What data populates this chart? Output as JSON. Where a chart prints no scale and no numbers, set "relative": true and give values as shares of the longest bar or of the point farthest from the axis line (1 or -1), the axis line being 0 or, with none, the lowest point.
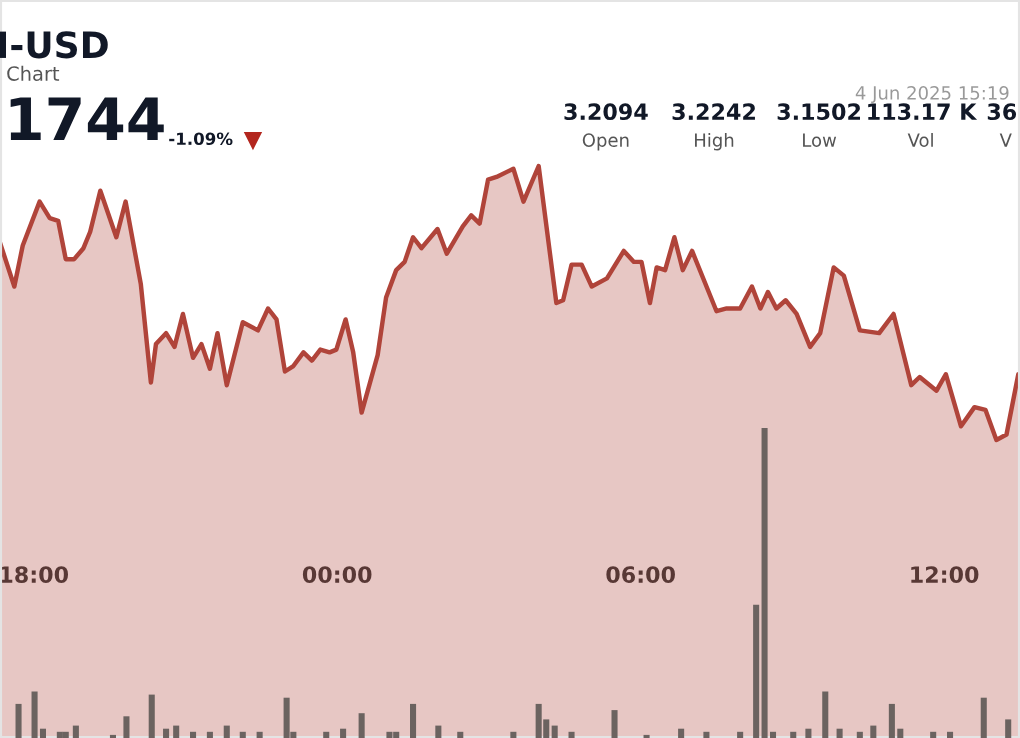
{
  "chart_data": [
    {
      "type": "area",
      "title": "I-USD",
      "subtitle": "Chart",
      "relative": true,
      "annotations": [
        "1744",
        "-1.09%",
        "4 Jun 2025 15:19",
        "3.2094",
        "Open",
        "3.2242",
        "High",
        "3.1502",
        "Low",
        "113.17 K",
        "Vol",
        "36",
        "V"
      ],
      "xlim": [
        "2025-06-03T17:20",
        "2025-06-04T13:30"
      ],
      "xticks": [
        {
          "value": "2025-06-03T18:00",
          "label": "18:00"
        },
        {
          "value": "2025-06-04T00:00",
          "label": "00:00"
        },
        {
          "value": "2025-06-04T06:00",
          "label": "06:00"
        },
        {
          "value": "2025-06-04T12:00",
          "label": "12:00"
        }
      ],
      "series": [
        {
          "color": "#b0443a",
          "x": [
            "2025-06-03T17:20",
            "2025-06-03T17:37",
            "2025-06-03T17:47",
            "2025-06-03T18:07",
            "2025-06-03T18:19",
            "2025-06-03T18:29",
            "2025-06-03T18:38",
            "2025-06-03T18:48",
            "2025-06-03T18:59",
            "2025-06-03T19:07",
            "2025-06-03T19:19",
            "2025-06-03T19:38",
            "2025-06-03T19:49",
            "2025-06-03T20:07",
            "2025-06-03T20:19",
            "2025-06-03T20:25",
            "2025-06-03T20:37",
            "2025-06-03T20:47",
            "2025-06-03T20:57",
            "2025-06-03T21:09",
            "2025-06-03T21:19",
            "2025-06-03T21:29",
            "2025-06-03T21:38",
            "2025-06-03T21:49",
            "2025-06-03T22:08",
            "2025-06-03T22:26",
            "2025-06-03T22:38",
            "2025-06-03T22:48",
            "2025-06-03T22:58",
            "2025-06-03T23:08",
            "2025-06-03T23:20",
            "2025-06-03T23:30",
            "2025-06-03T23:40",
            "2025-06-03T23:51",
            "2025-06-03T23:59",
            "2025-06-04T00:10",
            "2025-06-04T00:19",
            "2025-06-04T00:29",
            "2025-06-04T00:39",
            "2025-06-04T00:48",
            "2025-06-04T00:58",
            "2025-06-04T01:10",
            "2025-06-04T01:20",
            "2025-06-04T01:30",
            "2025-06-04T01:40",
            "2025-06-04T01:59",
            "2025-06-04T02:10",
            "2025-06-04T02:29",
            "2025-06-04T02:39",
            "2025-06-04T02:49",
            "2025-06-04T02:59",
            "2025-06-04T03:09",
            "2025-06-04T03:29",
            "2025-06-04T03:41",
            "2025-06-04T03:59",
            "2025-06-04T04:20",
            "2025-06-04T04:28",
            "2025-06-04T04:38",
            "2025-06-04T04:50",
            "2025-06-04T05:02",
            "2025-06-04T05:20",
            "2025-06-04T05:40",
            "2025-06-04T05:52",
            "2025-06-04T06:01",
            "2025-06-04T06:11",
            "2025-06-04T06:19",
            "2025-06-04T06:29",
            "2025-06-04T06:40",
            "2025-06-04T06:50",
            "2025-06-04T07:01",
            "2025-06-04T07:30",
            "2025-06-04T07:42",
            "2025-06-04T07:58",
            "2025-06-04T08:12",
            "2025-06-04T08:22",
            "2025-06-04T08:31",
            "2025-06-04T08:41",
            "2025-06-04T08:52",
            "2025-06-04T09:05",
            "2025-06-04T09:21",
            "2025-06-04T09:33",
            "2025-06-04T09:49",
            "2025-06-04T10:01",
            "2025-06-04T10:20",
            "2025-06-04T10:43",
            "2025-06-04T11:00",
            "2025-06-04T11:21",
            "2025-06-04T11:31",
            "2025-06-04T11:51",
            "2025-06-04T12:02",
            "2025-06-04T12:20",
            "2025-06-04T12:36",
            "2025-06-04T12:49",
            "2025-06-04T13:02",
            "2025-06-04T13:14",
            "2025-06-04T13:28"
          ],
          "values": [
            0.72,
            0.56,
            0.71,
            0.87,
            0.81,
            0.8,
            0.66,
            0.66,
            0.7,
            0.76,
            0.91,
            0.74,
            0.87,
            0.57,
            0.21,
            0.35,
            0.39,
            0.34,
            0.46,
            0.3,
            0.35,
            0.26,
            0.39,
            0.2,
            0.43,
            0.4,
            0.48,
            0.44,
            0.25,
            0.27,
            0.32,
            0.29,
            0.33,
            0.32,
            0.33,
            0.44,
            0.32,
            0.1,
            0.21,
            0.31,
            0.52,
            0.62,
            0.65,
            0.74,
            0.7,
            0.77,
            0.68,
            0.78,
            0.82,
            0.79,
            0.95,
            0.96,
            0.99,
            0.87,
            1.0,
            0.5,
            0.51,
            0.64,
            0.64,
            0.56,
            0.59,
            0.69,
            0.65,
            0.65,
            0.5,
            0.63,
            0.62,
            0.74,
            0.62,
            0.69,
            0.47,
            0.48,
            0.48,
            0.56,
            0.48,
            0.54,
            0.48,
            0.51,
            0.46,
            0.34,
            0.39,
            0.63,
            0.6,
            0.4,
            0.39,
            0.46,
            0.2,
            0.23,
            0.18,
            0.24,
            0.05,
            0.12,
            0.11,
            0.0,
            0.02,
            0.24
          ]
        }
      ]
    },
    {
      "type": "bar",
      "relative": true,
      "xlim": [
        "2025-06-03T17:20",
        "2025-06-04T13:30"
      ],
      "series": [
        {
          "color": "#6b6360",
          "x": [
            "2025-06-03T17:42",
            "2025-06-03T18:01",
            "2025-06-03T18:11",
            "2025-06-03T18:31",
            "2025-06-03T18:38",
            "2025-06-03T18:50",
            "2025-06-03T19:34",
            "2025-06-03T19:50",
            "2025-06-03T20:20",
            "2025-06-03T20:37",
            "2025-06-03T20:49",
            "2025-06-03T21:09",
            "2025-06-03T21:29",
            "2025-06-03T21:49",
            "2025-06-03T22:08",
            "2025-06-03T22:28",
            "2025-06-03T23:00",
            "2025-06-03T23:08",
            "2025-06-03T23:47",
            "2025-06-04T00:07",
            "2025-06-04T00:29",
            "2025-06-04T01:02",
            "2025-06-04T01:10",
            "2025-06-04T01:30",
            "2025-06-04T02:00",
            "2025-06-04T02:26",
            "2025-06-04T03:29",
            "2025-06-04T03:59",
            "2025-06-04T04:08",
            "2025-06-04T04:18",
            "2025-06-04T04:38",
            "2025-06-04T05:29",
            "2025-06-04T06:07",
            "2025-06-04T06:48",
            "2025-06-04T07:18",
            "2025-06-04T07:58",
            "2025-06-04T08:17",
            "2025-06-04T08:27",
            "2025-06-04T08:37",
            "2025-06-04T09:01",
            "2025-06-04T09:19",
            "2025-06-04T09:39",
            "2025-06-04T09:56",
            "2025-06-04T10:20",
            "2025-06-04T10:36",
            "2025-06-04T10:58",
            "2025-06-04T11:08",
            "2025-06-04T11:47",
            "2025-06-04T12:07",
            "2025-06-04T12:47",
            "2025-06-04T13:16"
          ],
          "values": [
            0.11,
            0.15,
            0.03,
            0.02,
            0.02,
            0.04,
            0.01,
            0.07,
            0.14,
            0.03,
            0.04,
            0.02,
            0.02,
            0.04,
            0.02,
            0.02,
            0.13,
            0.02,
            0.02,
            0.03,
            0.08,
            0.02,
            0.02,
            0.11,
            0.04,
            0.02,
            0.02,
            0.11,
            0.06,
            0.04,
            0.02,
            0.09,
            0.01,
            0.03,
            0.02,
            0.02,
            0.43,
            1.0,
            0.02,
            0.02,
            0.03,
            0.15,
            0.03,
            0.02,
            0.04,
            0.11,
            0.03,
            0.02,
            0.02,
            0.13,
            0.06
          ]
        }
      ]
    }
  ]
}
